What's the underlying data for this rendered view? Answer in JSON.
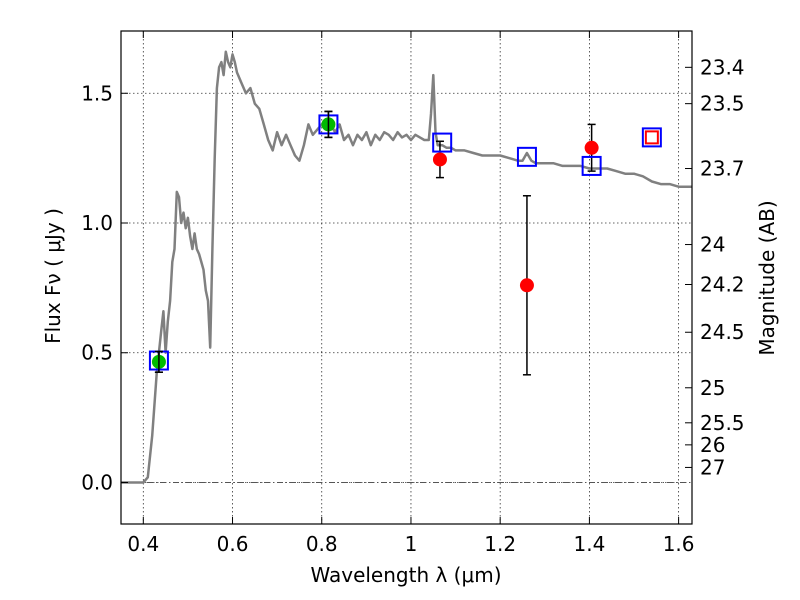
{
  "chart_data": {
    "type": "scatter",
    "xlabel": "Wavelength  λ (μm)",
    "ylabel": "Flux  Fν  ( μJy )",
    "y2label": "Magnitude (AB)",
    "xlim": [
      0.35,
      1.63
    ],
    "ylim": [
      -0.16,
      1.74
    ],
    "x_ticks": [
      0.4,
      0.6,
      0.8,
      1.0,
      1.2,
      1.4,
      1.6
    ],
    "x_tick_labels": [
      "0.4",
      "0.6",
      "0.8",
      "1",
      "1.2",
      "1.4",
      "1.6"
    ],
    "y_ticks": [
      0.0,
      0.5,
      1.0,
      1.5
    ],
    "y_tick_labels": [
      "0.0",
      "0.5",
      "1.0",
      "1.5"
    ],
    "y2_ticks": [
      {
        "label": "23.4",
        "flux": 1.6
      },
      {
        "label": "23.5",
        "flux": 1.46
      },
      {
        "label": "23.7",
        "flux": 1.21
      },
      {
        "label": "24",
        "flux": 0.917
      },
      {
        "label": "24.2",
        "flux": 0.763
      },
      {
        "label": "24.5",
        "flux": 0.579
      },
      {
        "label": "25",
        "flux": 0.365
      },
      {
        "label": "25.5",
        "flux": 0.23
      },
      {
        "label": "26",
        "flux": 0.145
      },
      {
        "label": "27",
        "flux": 0.058
      }
    ],
    "grid": true,
    "zero_line": 0.0,
    "colors": {
      "model": "#808080",
      "green": "#00bb00",
      "red": "#ff0000",
      "blue": "#0000ff",
      "errorbar": "#000000"
    },
    "model_spectrum": [
      [
        0.35,
        0.0
      ],
      [
        0.4,
        0.0
      ],
      [
        0.41,
        0.02
      ],
      [
        0.42,
        0.18
      ],
      [
        0.43,
        0.42
      ],
      [
        0.44,
        0.58
      ],
      [
        0.445,
        0.66
      ],
      [
        0.45,
        0.5
      ],
      [
        0.455,
        0.62
      ],
      [
        0.46,
        0.7
      ],
      [
        0.465,
        0.85
      ],
      [
        0.47,
        0.9
      ],
      [
        0.475,
        1.12
      ],
      [
        0.48,
        1.1
      ],
      [
        0.485,
        1.0
      ],
      [
        0.49,
        1.04
      ],
      [
        0.495,
        0.98
      ],
      [
        0.5,
        1.02
      ],
      [
        0.505,
        0.95
      ],
      [
        0.51,
        0.9
      ],
      [
        0.515,
        0.96
      ],
      [
        0.52,
        0.9
      ],
      [
        0.525,
        0.88
      ],
      [
        0.53,
        0.85
      ],
      [
        0.535,
        0.82
      ],
      [
        0.54,
        0.74
      ],
      [
        0.545,
        0.7
      ],
      [
        0.55,
        0.52
      ],
      [
        0.555,
        0.9
      ],
      [
        0.56,
        1.25
      ],
      [
        0.565,
        1.52
      ],
      [
        0.57,
        1.6
      ],
      [
        0.575,
        1.62
      ],
      [
        0.58,
        1.57
      ],
      [
        0.585,
        1.66
      ],
      [
        0.59,
        1.62
      ],
      [
        0.595,
        1.6
      ],
      [
        0.6,
        1.65
      ],
      [
        0.605,
        1.62
      ],
      [
        0.61,
        1.58
      ],
      [
        0.62,
        1.54
      ],
      [
        0.63,
        1.5
      ],
      [
        0.64,
        1.52
      ],
      [
        0.65,
        1.46
      ],
      [
        0.66,
        1.44
      ],
      [
        0.67,
        1.38
      ],
      [
        0.68,
        1.32
      ],
      [
        0.69,
        1.28
      ],
      [
        0.7,
        1.35
      ],
      [
        0.71,
        1.3
      ],
      [
        0.72,
        1.34
      ],
      [
        0.73,
        1.3
      ],
      [
        0.74,
        1.26
      ],
      [
        0.75,
        1.24
      ],
      [
        0.76,
        1.3
      ],
      [
        0.77,
        1.38
      ],
      [
        0.78,
        1.34
      ],
      [
        0.79,
        1.36
      ],
      [
        0.8,
        1.38
      ],
      [
        0.81,
        1.4
      ],
      [
        0.82,
        1.38
      ],
      [
        0.83,
        1.35
      ],
      [
        0.84,
        1.38
      ],
      [
        0.85,
        1.32
      ],
      [
        0.86,
        1.34
      ],
      [
        0.87,
        1.3
      ],
      [
        0.88,
        1.34
      ],
      [
        0.89,
        1.32
      ],
      [
        0.9,
        1.35
      ],
      [
        0.91,
        1.3
      ],
      [
        0.92,
        1.34
      ],
      [
        0.93,
        1.32
      ],
      [
        0.94,
        1.35
      ],
      [
        0.95,
        1.34
      ],
      [
        0.96,
        1.32
      ],
      [
        0.97,
        1.35
      ],
      [
        0.98,
        1.33
      ],
      [
        0.99,
        1.34
      ],
      [
        1.0,
        1.32
      ],
      [
        1.01,
        1.34
      ],
      [
        1.02,
        1.33
      ],
      [
        1.03,
        1.32
      ],
      [
        1.04,
        1.32
      ],
      [
        1.045,
        1.42
      ],
      [
        1.05,
        1.57
      ],
      [
        1.055,
        1.35
      ],
      [
        1.06,
        1.3
      ],
      [
        1.07,
        1.3
      ],
      [
        1.08,
        1.29
      ],
      [
        1.09,
        1.29
      ],
      [
        1.1,
        1.28
      ],
      [
        1.12,
        1.28
      ],
      [
        1.14,
        1.27
      ],
      [
        1.16,
        1.26
      ],
      [
        1.18,
        1.26
      ],
      [
        1.2,
        1.26
      ],
      [
        1.22,
        1.25
      ],
      [
        1.24,
        1.24
      ],
      [
        1.25,
        1.24
      ],
      [
        1.26,
        1.27
      ],
      [
        1.27,
        1.24
      ],
      [
        1.28,
        1.23
      ],
      [
        1.3,
        1.23
      ],
      [
        1.32,
        1.23
      ],
      [
        1.34,
        1.22
      ],
      [
        1.36,
        1.22
      ],
      [
        1.38,
        1.22
      ],
      [
        1.4,
        1.21
      ],
      [
        1.42,
        1.21
      ],
      [
        1.44,
        1.21
      ],
      [
        1.46,
        1.2
      ],
      [
        1.48,
        1.19
      ],
      [
        1.5,
        1.19
      ],
      [
        1.52,
        1.18
      ],
      [
        1.54,
        1.16
      ],
      [
        1.56,
        1.15
      ],
      [
        1.58,
        1.15
      ],
      [
        1.6,
        1.14
      ],
      [
        1.63,
        1.14
      ]
    ],
    "green_points": [
      {
        "x": 0.435,
        "y": 0.465,
        "err": 0.04
      },
      {
        "x": 0.815,
        "y": 1.38,
        "err": 0.05
      }
    ],
    "red_points": [
      {
        "x": 1.065,
        "y": 1.245,
        "err": 0.07
      },
      {
        "x": 1.26,
        "y": 0.76,
        "err": 0.345
      },
      {
        "x": 1.405,
        "y": 1.29,
        "err": 0.09
      }
    ],
    "blue_squares": [
      {
        "x": 0.435,
        "y": 0.47
      },
      {
        "x": 0.815,
        "y": 1.38
      },
      {
        "x": 1.07,
        "y": 1.31
      },
      {
        "x": 1.26,
        "y": 1.255
      },
      {
        "x": 1.405,
        "y": 1.22
      },
      {
        "x": 1.54,
        "y": 1.33
      }
    ],
    "red_open_squares": [
      {
        "x": 1.54,
        "y": 1.33
      }
    ]
  }
}
